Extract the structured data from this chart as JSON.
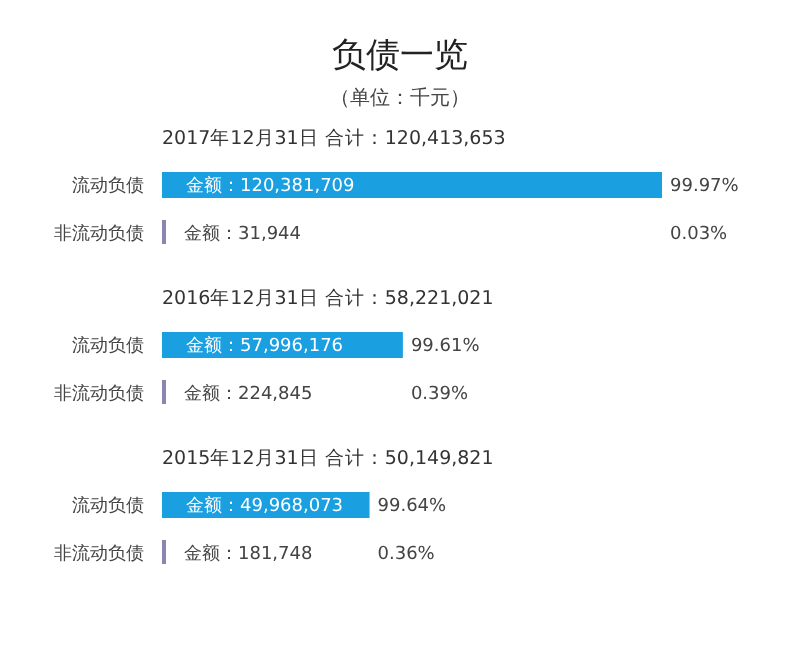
{
  "chart_data": [
    {
      "type": "other",
      "title": "负债一览",
      "subtitle": "（单位：千元）"
    },
    {
      "type": "bar",
      "orientation": "horizontal",
      "title": "2017年12月31日  合计：120,413,653",
      "categories": [
        "流动负债",
        "非流动负债"
      ],
      "values": [
        120381709,
        31944
      ],
      "colors": [
        "#1a9fe0",
        "#8a86b0"
      ],
      "value_labels": [
        "金额：120,381,709",
        "金额：31,944"
      ],
      "tick_labels": "y",
      "annotations": [
        "99.97%",
        "0.03%"
      ]
    },
    {
      "type": "bar",
      "orientation": "horizontal",
      "title": "2016年12月31日  合计：58,221,021",
      "categories": [
        "流动负债",
        "非流动负债"
      ],
      "values": [
        57996176,
        224845
      ],
      "colors": [
        "#1a9fe0",
        "#8a86b0"
      ],
      "value_labels": [
        "金额：57,996,176",
        "金额：224,845"
      ],
      "tick_labels": "y",
      "annotations": [
        "99.61%",
        "0.39%"
      ]
    },
    {
      "type": "bar",
      "orientation": "horizontal",
      "title": "2015年12月31日  合计：50,149,821",
      "categories": [
        "流动负债",
        "非流动负债"
      ],
      "values": [
        49968073,
        181748
      ],
      "colors": [
        "#1a9fe0",
        "#8a86b0"
      ],
      "value_labels": [
        "金额：49,968,073",
        "金额：181,748"
      ],
      "tick_labels": "y",
      "annotations": [
        "99.64%",
        "0.36%"
      ]
    }
  ]
}
